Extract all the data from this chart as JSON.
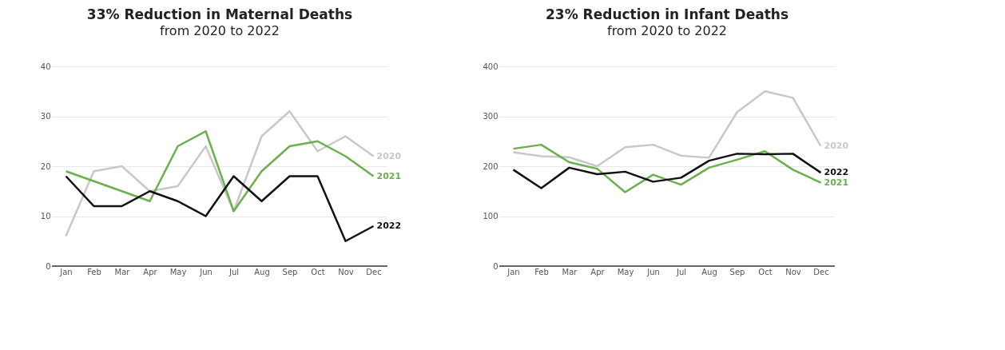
{
  "chart_data": [
    {
      "type": "line",
      "title": "33% Reduction in Maternal Deaths",
      "subtitle": "from 2020 to 2022",
      "categories": [
        "Jan",
        "Feb",
        "Mar",
        "Apr",
        "May",
        "Jun",
        "Jul",
        "Aug",
        "Sep",
        "Oct",
        "Nov",
        "Dec"
      ],
      "ylim": [
        0,
        40
      ],
      "yticks": [
        0,
        10,
        20,
        30,
        40
      ],
      "grid": "y",
      "legend": false,
      "marker": "none",
      "line_style": "solid",
      "series": [
        {
          "name": "2020",
          "color": "#c8c8c8",
          "values": [
            6,
            19,
            20,
            15,
            16,
            24,
            11,
            26,
            31,
            23,
            26,
            22
          ]
        },
        {
          "name": "2021",
          "color": "#6ab04c",
          "values": [
            19,
            17,
            15,
            13,
            24,
            27,
            11,
            19,
            24,
            25,
            22,
            18
          ]
        },
        {
          "name": "2022",
          "color": "#111111",
          "values": [
            18,
            12,
            12,
            15,
            13,
            10,
            18,
            13,
            18,
            18,
            5,
            8
          ]
        }
      ]
    },
    {
      "type": "line",
      "title": "23% Reduction in Infant Deaths",
      "subtitle": "from 2020 to 2022",
      "categories": [
        "Jan",
        "Feb",
        "Mar",
        "Apr",
        "May",
        "Jun",
        "Jul",
        "Aug",
        "Sep",
        "Oct",
        "Nov",
        "Dec"
      ],
      "ylim": [
        0,
        400
      ],
      "yticks": [
        0,
        100,
        200,
        300,
        400
      ],
      "grid": "y",
      "legend": false,
      "marker": "none",
      "line_style": "solid",
      "series": [
        {
          "name": "2020",
          "color": "#c8c8c8",
          "values": [
            228,
            220,
            218,
            200,
            238,
            243,
            221,
            217,
            308,
            350,
            337,
            240
          ]
        },
        {
          "name": "2021",
          "color": "#6ab04c",
          "values": [
            235,
            243,
            208,
            195,
            148,
            183,
            163,
            197,
            213,
            230,
            193,
            167
          ]
        },
        {
          "name": "2022",
          "color": "#111111",
          "values": [
            193,
            156,
            197,
            184,
            189,
            169,
            177,
            211,
            225,
            224,
            225,
            187
          ]
        }
      ]
    }
  ]
}
